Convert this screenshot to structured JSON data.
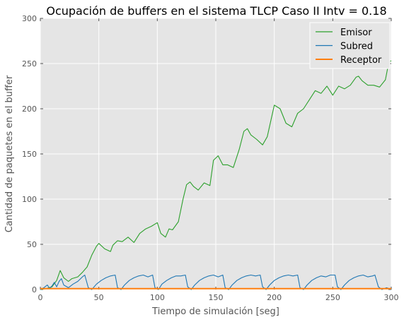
{
  "chart_data": {
    "type": "line",
    "title": "Ocupación de buffers en el sistema TLCP Caso II Intv = 0.18",
    "xlabel": "Tiempo de simulación [seg]",
    "ylabel": "Cantidad de paquetes en el buffer",
    "xlim": [
      0,
      300
    ],
    "ylim": [
      0,
      300
    ],
    "xticks": [
      0,
      50,
      100,
      150,
      200,
      250,
      300
    ],
    "yticks": [
      0,
      50,
      100,
      150,
      200,
      250,
      300
    ],
    "grid": true,
    "legend_position": "top-right",
    "series": [
      {
        "name": "Emisor",
        "color": "#2ca02c",
        "x": [
          0,
          5,
          10,
          14,
          17,
          20,
          24,
          27,
          32,
          36,
          40,
          44,
          48,
          50,
          55,
          60,
          62,
          66,
          70,
          75,
          80,
          85,
          90,
          95,
          100,
          103,
          107,
          110,
          113,
          118,
          122,
          125,
          128,
          131,
          135,
          140,
          145,
          148,
          152,
          156,
          160,
          165,
          170,
          174,
          177,
          180,
          185,
          190,
          194,
          200,
          205,
          210,
          215,
          220,
          225,
          230,
          235,
          240,
          245,
          250,
          255,
          260,
          265,
          270,
          272,
          275,
          280,
          285,
          290,
          295,
          298,
          300
        ],
        "y": [
          0,
          1,
          3,
          10,
          21,
          13,
          9,
          12,
          14,
          19,
          25,
          38,
          48,
          51,
          45,
          42,
          49,
          54,
          53,
          58,
          52,
          62,
          67,
          70,
          74,
          62,
          58,
          67,
          66,
          75,
          100,
          116,
          119,
          114,
          110,
          118,
          115,
          143,
          148,
          138,
          138,
          135,
          155,
          175,
          178,
          171,
          166,
          160,
          169,
          204,
          200,
          184,
          180,
          195,
          200,
          210,
          220,
          217,
          225,
          215,
          225,
          222,
          226,
          235,
          236,
          231,
          226,
          226,
          224,
          232,
          252,
          253
        ]
      },
      {
        "name": "Subred",
        "color": "#1f77b4",
        "x": [
          0,
          3,
          6,
          8,
          10,
          12,
          14,
          16,
          18,
          20,
          24,
          28,
          32,
          36,
          38,
          41,
          44,
          48,
          52,
          56,
          60,
          64,
          66,
          69,
          72,
          76,
          80,
          84,
          88,
          92,
          96,
          98,
          101,
          104,
          108,
          112,
          116,
          120,
          124,
          126,
          129,
          132,
          136,
          140,
          144,
          148,
          152,
          156,
          158,
          161,
          164,
          168,
          172,
          176,
          180,
          184,
          188,
          190,
          193,
          196,
          200,
          204,
          208,
          212,
          216,
          220,
          222,
          225,
          228,
          232,
          236,
          240,
          244,
          248,
          252,
          254,
          257,
          260,
          264,
          268,
          272,
          276,
          280,
          284,
          286,
          289,
          292,
          296,
          300
        ],
        "y": [
          0,
          2,
          5,
          1,
          4,
          8,
          3,
          9,
          12,
          5,
          2,
          6,
          9,
          14,
          16,
          2,
          0,
          6,
          10,
          13,
          15,
          16,
          2,
          0,
          5,
          10,
          13,
          15,
          16,
          14,
          16,
          2,
          0,
          6,
          10,
          13,
          15,
          15,
          16,
          3,
          0,
          5,
          10,
          13,
          15,
          16,
          14,
          16,
          2,
          0,
          5,
          10,
          13,
          15,
          16,
          15,
          16,
          3,
          0,
          5,
          10,
          13,
          15,
          16,
          15,
          16,
          2,
          0,
          5,
          10,
          13,
          15,
          14,
          16,
          16,
          3,
          0,
          5,
          10,
          13,
          15,
          16,
          14,
          15,
          16,
          3,
          0,
          2,
          0
        ]
      },
      {
        "name": "Receptor",
        "color": "#ff7f0e",
        "x": [
          0,
          300
        ],
        "y": [
          1,
          1
        ]
      }
    ]
  }
}
